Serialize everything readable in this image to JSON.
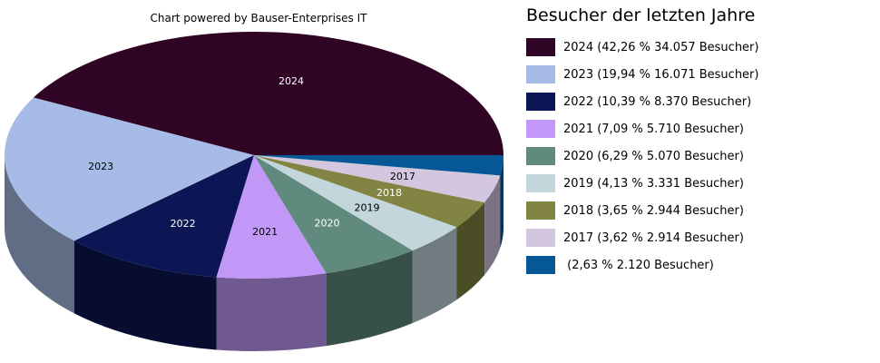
{
  "credit": "Chart powered by Bauser-Enterprises IT",
  "chart_data": {
    "type": "pie",
    "title": "Besucher der letzten Jahre",
    "categories": [
      "2024",
      "2023",
      "2022",
      "2021",
      "2020",
      "2019",
      "2018",
      "2017",
      ""
    ],
    "values": [
      34057,
      16071,
      8370,
      5710,
      5070,
      3331,
      2944,
      2914,
      2120
    ],
    "percent": [
      "42,26 %",
      "19,94 %",
      "10,39 %",
      "7,09 %",
      "6,29 %",
      "4,13 %",
      "3,65 %",
      "3,62 %",
      "2,63 %"
    ],
    "legend": [
      "2024 (42,26 % 34.057 Besucher)",
      "2023 (19,94 % 16.071 Besucher)",
      "2022 (10,39 % 8.370 Besucher)",
      "2021 (7,09 % 5.710 Besucher)",
      "2020 (6,29 % 5.070 Besucher)",
      "2019 (4,13 % 3.331 Besucher)",
      "2018 (3,65 % 2.944 Besucher)",
      "2017 (3,62 % 2.914 Besucher)",
      " (2,63 % 2.120 Besucher)"
    ],
    "colors": [
      "#300425",
      "#a6bce6",
      "#0c1654",
      "#c197f8",
      "#618a7f",
      "#c2d6dc",
      "#818442",
      "#d3c7e0",
      "#055895"
    ],
    "label_colors": [
      "#ffffff",
      "#000000",
      "#ffffff",
      "#000000",
      "#ffffff",
      "#000000",
      "#ffffff",
      "#000000",
      "#ffffff"
    ],
    "legend_placement": "right",
    "style": "3d-pie"
  }
}
